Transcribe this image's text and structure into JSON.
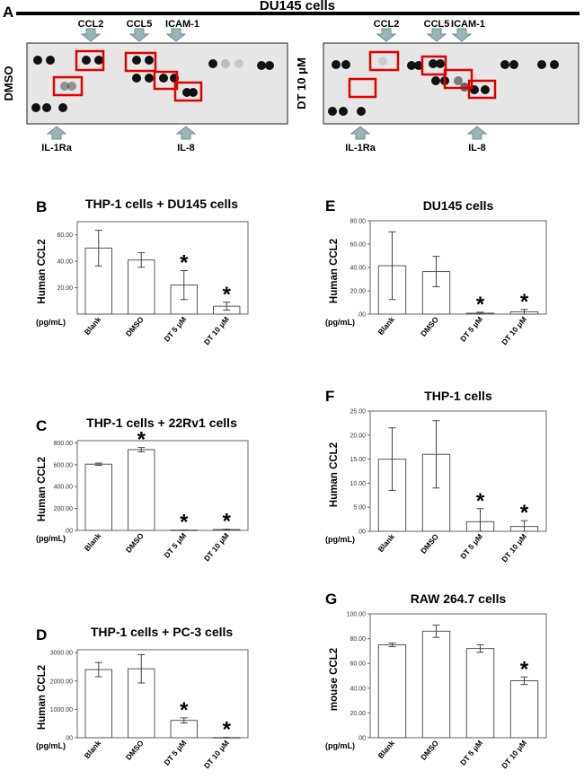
{
  "panel_a": {
    "letter": "A",
    "title": "DU145 cells",
    "blots": [
      {
        "side_label": "DMSO",
        "top_labels": [
          "CCL2",
          "CCL5",
          "ICAM-1"
        ],
        "bottom_labels": [
          "IL-1Ra",
          "IL-8"
        ]
      },
      {
        "side_label": "DT 10 μM",
        "top_labels": [
          "CCL2",
          "CCL5",
          "ICAM-1"
        ],
        "bottom_labels": [
          "IL-1Ra",
          "IL-8"
        ]
      }
    ]
  },
  "colors": {
    "highlight": "#e00000",
    "arrow": "#9ab5b8",
    "arrow_edge": "#6f8f93",
    "membrane": "#e6e6e6",
    "spot": "#111111"
  },
  "chart_data": [
    {
      "id": "B",
      "letter": "B",
      "type": "bar",
      "title": "THP-1 cells + DU145 cells",
      "ylabel": "Human CCL2",
      "unit": "(pg/mL)",
      "categories": [
        "Blank",
        "DMSO",
        "DT 5 μM",
        "DT 10 μM"
      ],
      "values": [
        50,
        41,
        22,
        6
      ],
      "errors": [
        13.5,
        5.5,
        11,
        3
      ],
      "significant": [
        false,
        false,
        true,
        true
      ],
      "ylim": [
        0,
        70
      ],
      "ticks": [
        20,
        40,
        60
      ],
      "tick_labels": [
        "20.00",
        "40.00",
        "60.00"
      ]
    },
    {
      "id": "C",
      "letter": "C",
      "type": "bar",
      "title": "THP-1 cells + 22Rv1 cells",
      "ylabel": "Human CCL2",
      "unit": "(pg/mL)",
      "categories": [
        "Blank",
        "DMSO",
        "DT 5 μM",
        "DT 10 μM"
      ],
      "values": [
        605,
        738,
        3,
        8
      ],
      "errors": [
        10,
        20,
        1,
        3
      ],
      "significant": [
        false,
        true,
        true,
        true
      ],
      "ylim": [
        0,
        820
      ],
      "ticks": [
        0,
        200,
        400,
        600,
        800
      ],
      "tick_labels": [
        ".00",
        "200.00",
        "400.00",
        "600.00",
        "800.00"
      ]
    },
    {
      "id": "D",
      "letter": "D",
      "type": "bar",
      "title": "THP-1 cells + PC-3 cells",
      "ylabel": "Human CCL2",
      "unit": "(pg/mL)",
      "categories": [
        "Blank",
        "DMSO",
        "DT 5 μM",
        "DT 10 μM"
      ],
      "values": [
        2400,
        2430,
        610,
        5
      ],
      "errors": [
        250,
        500,
        90,
        3
      ],
      "significant": [
        false,
        false,
        true,
        true
      ],
      "ylim": [
        0,
        3100
      ],
      "ticks": [
        0,
        1000,
        2000,
        3000
      ],
      "tick_labels": [
        ".00",
        "1000.00",
        "2000.00",
        "3000.00"
      ]
    },
    {
      "id": "E",
      "letter": "E",
      "type": "bar",
      "title": "DU145 cells",
      "ylabel": "Human CCL2",
      "unit": "(pg/mL)",
      "categories": [
        "Blank",
        "DMSO",
        "DT 5 μM",
        "DT 10 μM"
      ],
      "values": [
        41.5,
        36.5,
        0.8,
        2
      ],
      "errors": [
        29,
        13,
        0.8,
        2
      ],
      "significant": [
        false,
        false,
        true,
        true
      ],
      "ylim": [
        0,
        80
      ],
      "ticks": [
        0,
        20,
        40,
        60,
        80
      ],
      "tick_labels": [
        ".00",
        "20.00",
        "40.00",
        "60.00",
        "80.00"
      ]
    },
    {
      "id": "F",
      "letter": "F",
      "type": "bar",
      "title": "THP-1 cells",
      "ylabel": "Human CCL2",
      "unit": "(pg/mL)",
      "categories": [
        "Blank",
        "DMSO",
        "DT 5 μM",
        "DT 10 μM"
      ],
      "values": [
        15,
        16,
        2,
        1
      ],
      "errors": [
        6.5,
        7,
        2.7,
        1.2
      ],
      "significant": [
        false,
        false,
        true,
        true
      ],
      "ylim": [
        0,
        25
      ],
      "ticks": [
        0,
        5,
        10,
        15,
        20,
        25
      ],
      "tick_labels": [
        ".00",
        "5.00",
        "10.00",
        "15.00",
        "20.00",
        "25.00"
      ]
    },
    {
      "id": "G",
      "letter": "G",
      "type": "bar",
      "title": "RAW 264.7 cells",
      "ylabel": "mouse CCL2",
      "unit": "(pg/mL)",
      "categories": [
        "Blank",
        "DMSO",
        "DT 5 μM",
        "DT 10 μM"
      ],
      "values": [
        75,
        86,
        72,
        46
      ],
      "errors": [
        1.5,
        5,
        3,
        3
      ],
      "significant": [
        false,
        false,
        false,
        true
      ],
      "ylim": [
        0,
        100
      ],
      "ticks": [
        0,
        20,
        40,
        60,
        80,
        100
      ],
      "tick_labels": [
        ".00",
        "20.00",
        "40.00",
        "60.00",
        "80.00",
        "100.00"
      ]
    }
  ]
}
